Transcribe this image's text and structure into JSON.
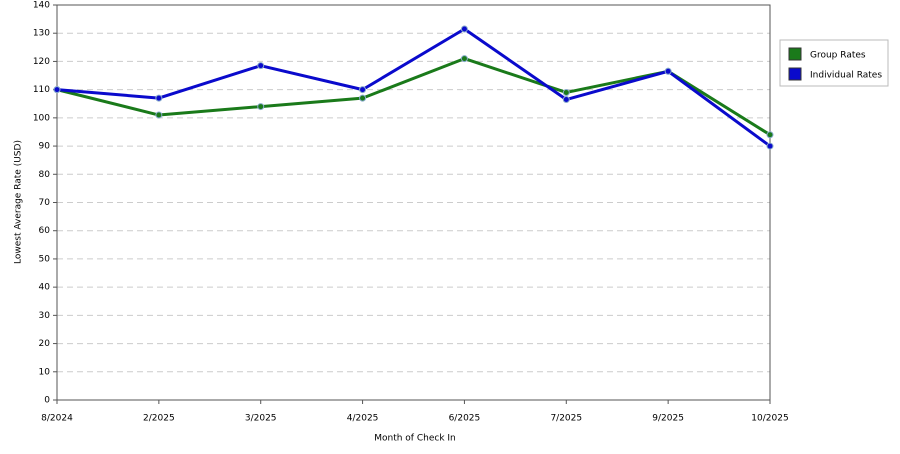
{
  "chart_data": {
    "type": "line",
    "x_label": "Month of Check In",
    "y_label": "Lowest Average Rate (USD)",
    "categories": [
      "8/2024",
      "2/2025",
      "3/2025",
      "4/2025",
      "6/2025",
      "7/2025",
      "9/2025",
      "10/2025"
    ],
    "series": [
      {
        "name": "Group Rates",
        "color": "#1a7a1a",
        "values": [
          110,
          101,
          104,
          107,
          121,
          109,
          116.5,
          94
        ]
      },
      {
        "name": "Individual Rates",
        "color": "#0a0acc",
        "values": [
          110,
          107,
          118.5,
          110,
          131.5,
          106.5,
          116.5,
          90
        ]
      }
    ],
    "ylim": [
      0,
      140
    ],
    "yticks": [
      0,
      10,
      20,
      30,
      40,
      50,
      60,
      70,
      80,
      90,
      100,
      110,
      120,
      130,
      140
    ],
    "grid": true,
    "legend": "right"
  }
}
